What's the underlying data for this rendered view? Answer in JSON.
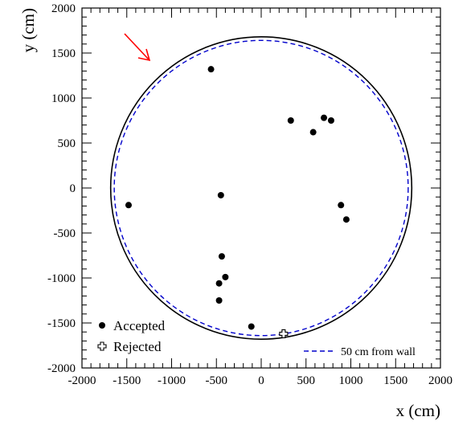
{
  "chart_data": {
    "type": "scatter",
    "xlabel": "x (cm)",
    "ylabel": "y (cm)",
    "xlim": [
      -2000,
      2000
    ],
    "ylim": [
      -2000,
      2000
    ],
    "x_ticks": [
      -2000,
      -1500,
      -1000,
      -500,
      0,
      500,
      1000,
      1500,
      2000
    ],
    "y_ticks": [
      -2000,
      -1500,
      -1000,
      -500,
      0,
      500,
      1000,
      1500,
      2000
    ],
    "grid": false,
    "series": [
      {
        "name": "Accepted",
        "marker": "filled-circle",
        "color": "#000000",
        "points": [
          [
            -560,
            1320
          ],
          [
            330,
            750
          ],
          [
            700,
            780
          ],
          [
            780,
            750
          ],
          [
            580,
            620
          ],
          [
            -1480,
            -190
          ],
          [
            -450,
            -80
          ],
          [
            890,
            -190
          ],
          [
            950,
            -350
          ],
          [
            -440,
            -760
          ],
          [
            -400,
            -990
          ],
          [
            -470,
            -1060
          ],
          [
            -470,
            -1250
          ],
          [
            -110,
            -1540
          ]
        ]
      },
      {
        "name": "Rejected",
        "marker": "open-cross",
        "color": "#000000",
        "points": [
          [
            250,
            -1620
          ]
        ]
      }
    ],
    "overlays": [
      {
        "kind": "circle",
        "radius": 1680,
        "style": "solid",
        "color": "#000000"
      },
      {
        "kind": "circle",
        "radius": 1640,
        "style": "dashed",
        "color": "#0000cc",
        "label": "50 cm from wall"
      },
      {
        "kind": "arrow",
        "color": "#ff0000"
      }
    ],
    "legend": {
      "placement": "bottom-left",
      "entries": [
        "Accepted",
        "Rejected"
      ]
    },
    "overlay_legend": {
      "placement": "bottom-right",
      "entries": [
        "50 cm from wall"
      ]
    }
  }
}
